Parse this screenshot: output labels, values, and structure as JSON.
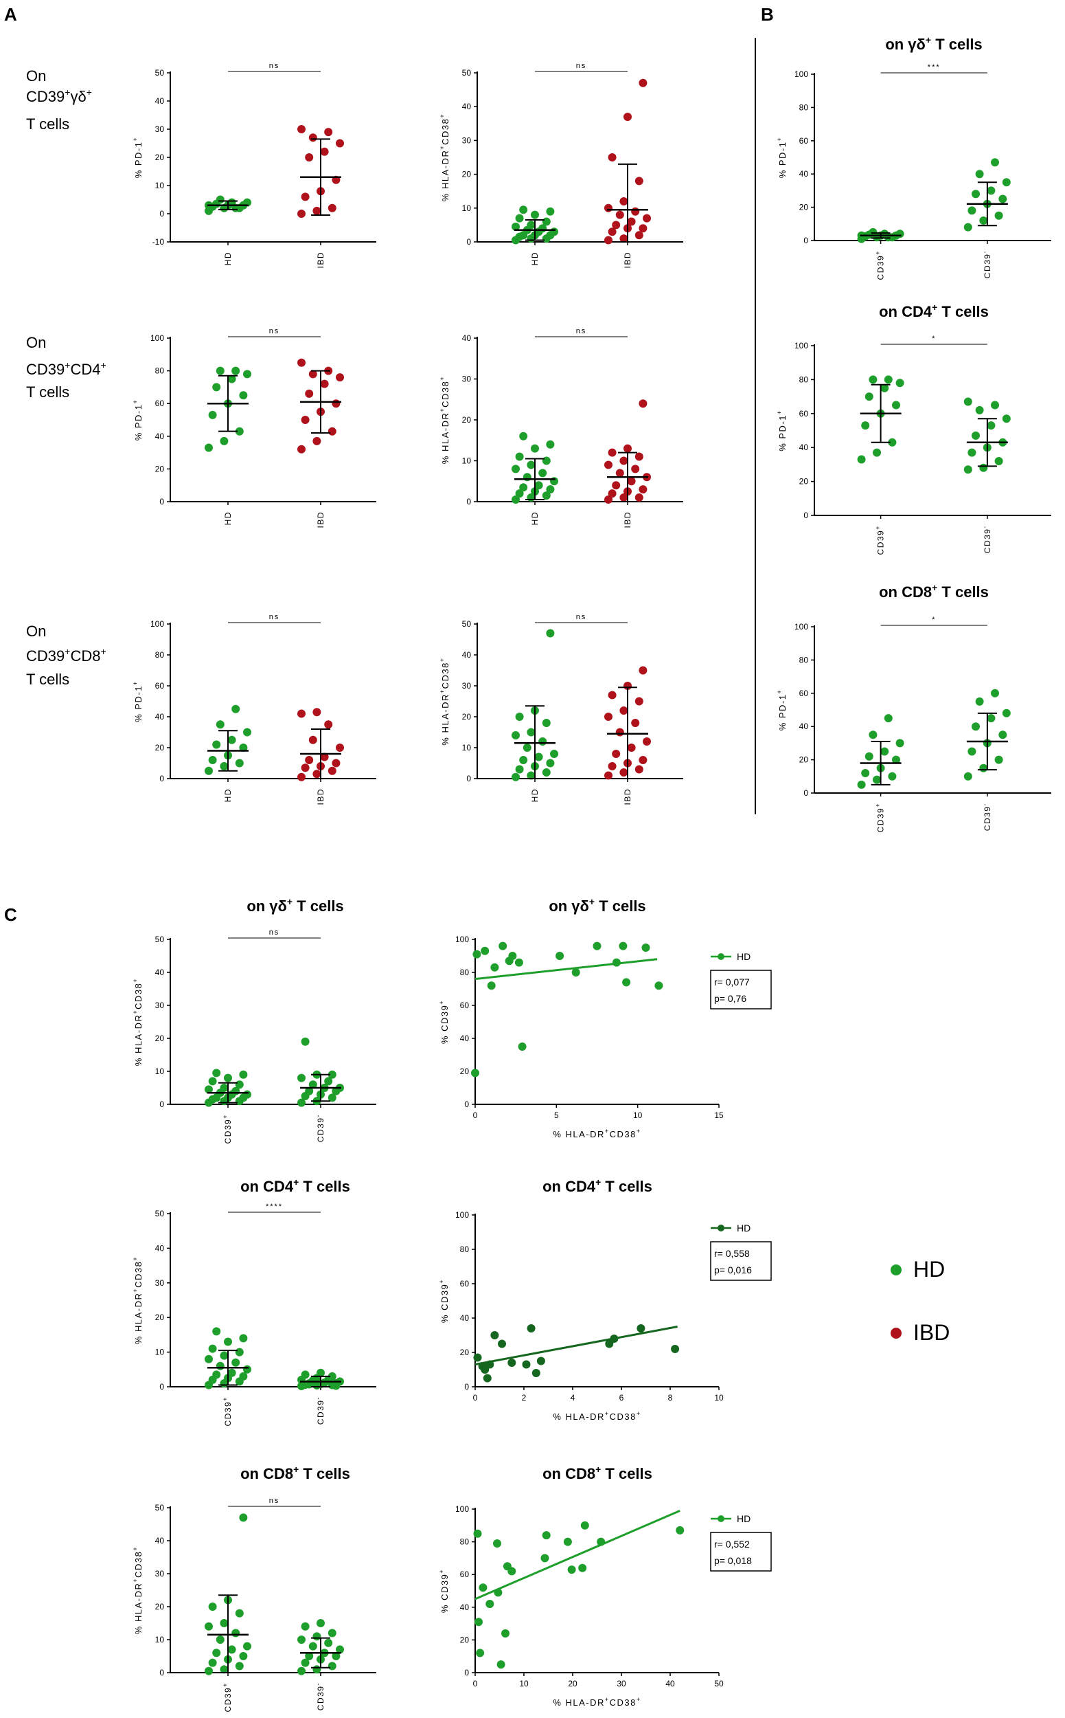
{
  "panel_labels": {
    "a": "A",
    "b": "B",
    "c": "C"
  },
  "row_labels": {
    "gd": {
      "l1": "On",
      "l2a": "CD39",
      "l2b": "+",
      "l2c": "γδ",
      "l2d": "+",
      "l3": "T cells"
    },
    "cd4": {
      "l1": "On",
      "l2a": "CD39",
      "l2b": "+",
      "l2c": "CD4",
      "l2d": "+",
      "l3": "T cells"
    },
    "cd8": {
      "l1": "On",
      "l2a": "CD39",
      "l2b": "+",
      "l2c": "CD8",
      "l2d": "+",
      "l3": "T cells"
    }
  },
  "titles": {
    "b_gd": {
      "a": "on γδ",
      "b": "+",
      "c": " T cells"
    },
    "b_cd4": {
      "a": "on CD4",
      "b": "+",
      "c": " T cells"
    },
    "b_cd8": {
      "a": "on CD8",
      "b": "+",
      "c": " T cells"
    }
  },
  "axis_text": {
    "pd1": "% PD-1",
    "hla": "% HLA-DR",
    "cd38": "CD38",
    "cd39": "% CD39",
    "sup": "+",
    "minus": "-",
    "cd39_tick": "CD39"
  },
  "legend": {
    "hd": "HD",
    "ibd": "IBD"
  },
  "colors": {
    "hd": "#1e9e2a",
    "ibd": "#b0121b",
    "hd_dark": "#15661e",
    "axis": "#000000"
  },
  "chart_data": [
    {
      "id": "A1",
      "type": "scatter",
      "title": "",
      "ylabel": "% PD-1+",
      "ylim": [
        -10,
        50
      ],
      "yticks": [
        -10,
        0,
        10,
        20,
        30,
        40,
        50
      ],
      "categories": [
        "HD",
        "IBD"
      ],
      "significance": "ns",
      "series": [
        {
          "name": "HD",
          "color": "hd",
          "mean": 3,
          "sd": 1.5,
          "values": [
            1,
            2,
            2,
            2.5,
            3,
            3,
            3.5,
            4,
            4,
            5,
            2,
            3
          ]
        },
        {
          "name": "IBD",
          "color": "ibd",
          "mean": 13,
          "sd": 13.5,
          "values": [
            0,
            1,
            2,
            6,
            8,
            12,
            20,
            22,
            25,
            27,
            29,
            30
          ]
        }
      ]
    },
    {
      "id": "A2",
      "type": "scatter",
      "ylabel": "% HLA-DR+CD38+",
      "ylim": [
        0,
        50
      ],
      "yticks": [
        0,
        10,
        20,
        30,
        40,
        50
      ],
      "categories": [
        "HD",
        "IBD"
      ],
      "significance": "ns",
      "series": [
        {
          "name": "HD",
          "color": "hd",
          "mean": 3.5,
          "sd": 3,
          "values": [
            0.5,
            1,
            1,
            1.5,
            2,
            2,
            2,
            3,
            3,
            3.5,
            4,
            4.5,
            5,
            6,
            7,
            8,
            9,
            9.5
          ]
        },
        {
          "name": "IBD",
          "color": "ibd",
          "mean": 9.5,
          "sd": 13.5,
          "values": [
            0.5,
            1,
            2,
            3,
            4,
            4,
            5,
            6,
            7,
            8,
            9,
            10,
            12,
            18,
            25,
            37,
            47
          ]
        }
      ]
    },
    {
      "id": "A3",
      "type": "scatter",
      "ylabel": "% PD-1+",
      "ylim": [
        0,
        100
      ],
      "yticks": [
        0,
        20,
        40,
        60,
        80,
        100
      ],
      "categories": [
        "HD",
        "IBD"
      ],
      "significance": "ns",
      "series": [
        {
          "name": "HD",
          "color": "hd",
          "mean": 60,
          "sd": 17,
          "values": [
            33,
            37,
            43,
            53,
            60,
            65,
            70,
            75,
            78,
            80,
            80
          ]
        },
        {
          "name": "IBD",
          "color": "ibd",
          "mean": 61,
          "sd": 19,
          "values": [
            32,
            37,
            43,
            50,
            55,
            60,
            66,
            72,
            76,
            78,
            80,
            85
          ]
        }
      ]
    },
    {
      "id": "A4",
      "type": "scatter",
      "ylabel": "% HLA-DR+CD38+",
      "ylim": [
        0,
        40
      ],
      "yticks": [
        0,
        10,
        20,
        30,
        40
      ],
      "categories": [
        "HD",
        "IBD"
      ],
      "significance": "ns",
      "series": [
        {
          "name": "HD",
          "color": "hd",
          "mean": 5.5,
          "sd": 5,
          "values": [
            0.5,
            1,
            1.5,
            2,
            2.5,
            3,
            3.5,
            4,
            5,
            6,
            7,
            8,
            9,
            10,
            11,
            13,
            14,
            16
          ]
        },
        {
          "name": "IBD",
          "color": "ibd",
          "mean": 6,
          "sd": 6,
          "values": [
            0.5,
            1,
            1,
            2,
            2.5,
            3,
            4,
            5,
            6,
            7,
            8,
            9,
            10,
            11,
            12,
            13,
            24
          ]
        }
      ]
    },
    {
      "id": "A5",
      "type": "scatter",
      "ylabel": "% PD-1+",
      "ylim": [
        0,
        100
      ],
      "yticks": [
        0,
        20,
        40,
        60,
        80,
        100
      ],
      "categories": [
        "HD",
        "IBD"
      ],
      "significance": "ns",
      "series": [
        {
          "name": "HD",
          "color": "hd",
          "mean": 18,
          "sd": 13,
          "values": [
            5,
            8,
            10,
            12,
            15,
            20,
            22,
            25,
            30,
            35,
            45
          ]
        },
        {
          "name": "IBD",
          "color": "ibd",
          "mean": 16,
          "sd": 16,
          "values": [
            1,
            3,
            5,
            7,
            8,
            10,
            12,
            14,
            20,
            25,
            35,
            42,
            43
          ]
        }
      ]
    },
    {
      "id": "A6",
      "type": "scatter",
      "ylabel": "% HLA-DR+CD38+",
      "ylim": [
        0,
        50
      ],
      "yticks": [
        0,
        10,
        20,
        30,
        40,
        50
      ],
      "categories": [
        "HD",
        "IBD"
      ],
      "significance": "ns",
      "series": [
        {
          "name": "HD",
          "color": "hd",
          "mean": 11.5,
          "sd": 12,
          "values": [
            0.5,
            1,
            2,
            3,
            4,
            5,
            6,
            7,
            8,
            10,
            12,
            14,
            15,
            18,
            20,
            22,
            47
          ]
        },
        {
          "name": "IBD",
          "color": "ibd",
          "mean": 14.5,
          "sd": 15,
          "values": [
            1,
            2,
            3,
            4,
            5,
            6,
            8,
            10,
            12,
            15,
            18,
            20,
            22,
            25,
            27,
            30,
            35
          ]
        }
      ]
    },
    {
      "id": "B1",
      "type": "scatter",
      "title": "on γδ+ T cells",
      "ylabel": "% PD-1+",
      "ylim": [
        0,
        100
      ],
      "yticks": [
        0,
        20,
        40,
        60,
        80,
        100
      ],
      "categories": [
        "CD39+",
        "CD39-"
      ],
      "significance": "***",
      "series": [
        {
          "name": "CD39+",
          "color": "hd",
          "mean": 3,
          "sd": 1.5,
          "values": [
            1,
            2,
            2,
            2.5,
            3,
            3,
            3.5,
            4,
            4,
            5,
            2,
            3
          ]
        },
        {
          "name": "CD39-",
          "color": "hd",
          "mean": 22,
          "sd": 13,
          "values": [
            8,
            12,
            15,
            18,
            22,
            25,
            28,
            30,
            35,
            40,
            47
          ]
        }
      ]
    },
    {
      "id": "B2",
      "type": "scatter",
      "title": "on CD4+ T cells",
      "ylabel": "% PD-1+",
      "ylim": [
        0,
        100
      ],
      "yticks": [
        0,
        20,
        40,
        60,
        80,
        100
      ],
      "categories": [
        "CD39+",
        "CD39-"
      ],
      "significance": "*",
      "series": [
        {
          "name": "CD39+",
          "color": "hd",
          "mean": 60,
          "sd": 17,
          "values": [
            33,
            37,
            43,
            53,
            60,
            65,
            70,
            75,
            78,
            80,
            80
          ]
        },
        {
          "name": "CD39-",
          "color": "hd",
          "mean": 43,
          "sd": 14,
          "values": [
            27,
            28,
            32,
            37,
            40,
            43,
            47,
            53,
            57,
            62,
            65,
            67
          ]
        }
      ]
    },
    {
      "id": "B3",
      "type": "scatter",
      "title": "on CD8+ T cells",
      "ylabel": "% PD-1+",
      "ylim": [
        0,
        100
      ],
      "yticks": [
        0,
        20,
        40,
        60,
        80,
        100
      ],
      "categories": [
        "CD39+",
        "CD39-"
      ],
      "significance": "*",
      "series": [
        {
          "name": "CD39+",
          "color": "hd",
          "mean": 18,
          "sd": 13,
          "values": [
            5,
            8,
            10,
            12,
            15,
            20,
            22,
            25,
            30,
            35,
            45
          ]
        },
        {
          "name": "CD39-",
          "color": "hd",
          "mean": 31,
          "sd": 17,
          "values": [
            10,
            15,
            20,
            25,
            30,
            35,
            40,
            45,
            48,
            55,
            60
          ]
        }
      ]
    },
    {
      "id": "C1",
      "type": "scatter",
      "title": "on γδ+ T cells",
      "ylabel": "% HLA-DR+CD38+",
      "ylim": [
        0,
        50
      ],
      "yticks": [
        0,
        10,
        20,
        30,
        40,
        50
      ],
      "categories": [
        "CD39+",
        "CD39-"
      ],
      "significance": "ns",
      "series": [
        {
          "name": "CD39+",
          "color": "hd",
          "mean": 3.5,
          "sd": 3,
          "values": [
            0.5,
            1,
            1,
            1.5,
            2,
            2,
            2,
            3,
            3,
            3.5,
            4,
            4.5,
            5,
            6,
            7,
            8,
            9,
            9.5
          ]
        },
        {
          "name": "CD39-",
          "color": "hd",
          "mean": 5,
          "sd": 4,
          "values": [
            0.5,
            1,
            2,
            2.5,
            3,
            4,
            4,
            5,
            5,
            6,
            7,
            8,
            9,
            9,
            19
          ]
        }
      ]
    },
    {
      "id": "C3",
      "type": "scatter",
      "title": "on CD4+ T cells",
      "ylabel": "% HLA-DR+CD38+",
      "ylim": [
        0,
        50
      ],
      "yticks": [
        0,
        10,
        20,
        30,
        40,
        50
      ],
      "categories": [
        "CD39+",
        "CD39-"
      ],
      "significance": "****",
      "series": [
        {
          "name": "CD39+",
          "color": "hd",
          "mean": 5.5,
          "sd": 5,
          "values": [
            0.5,
            1,
            1.5,
            2,
            2.5,
            3,
            3.5,
            4,
            5,
            6,
            7,
            8,
            9,
            10,
            11,
            13,
            14,
            16
          ]
        },
        {
          "name": "CD39-",
          "color": "hd",
          "mean": 1.5,
          "sd": 1.5,
          "values": [
            0.2,
            0.4,
            0.5,
            0.6,
            0.8,
            1,
            1,
            1.2,
            1.5,
            1.8,
            2,
            2,
            2.5,
            3,
            3.5,
            4,
            0.3,
            0.7
          ]
        }
      ]
    },
    {
      "id": "C5",
      "type": "scatter",
      "title": "on CD8+ T cells",
      "ylabel": "% HLA-DR+CD38+",
      "ylim": [
        0,
        50
      ],
      "yticks": [
        0,
        10,
        20,
        30,
        40,
        50
      ],
      "categories": [
        "CD39+",
        "CD39-"
      ],
      "significance": "ns",
      "series": [
        {
          "name": "CD39+",
          "color": "hd",
          "mean": 11.5,
          "sd": 12,
          "values": [
            0.5,
            1,
            2,
            3,
            4,
            5,
            6,
            7,
            8,
            10,
            12,
            14,
            15,
            18,
            20,
            22,
            47
          ]
        },
        {
          "name": "CD39-",
          "color": "hd",
          "mean": 6,
          "sd": 4.5,
          "values": [
            0.5,
            1,
            2,
            3,
            4,
            5,
            5,
            6,
            7,
            8,
            9,
            10,
            11,
            12,
            14,
            15
          ]
        }
      ]
    },
    {
      "id": "C2",
      "type": "scatter",
      "title": "on γδ+ T cells",
      "xlabel": "% HLA-DR+CD38+",
      "ylabel": "% CD39+",
      "xlim": [
        0,
        15
      ],
      "ylim": [
        0,
        100
      ],
      "xticks": [
        0,
        5,
        10,
        15
      ],
      "yticks": [
        0,
        20,
        40,
        60,
        80,
        100
      ],
      "legend": "HD",
      "stats": {
        "r": "r= 0,077",
        "p": "p= 0,76"
      },
      "fit": [
        [
          0,
          76
        ],
        [
          11.2,
          88
        ]
      ],
      "points": [
        [
          0,
          19
        ],
        [
          0.1,
          91
        ],
        [
          0.6,
          93
        ],
        [
          1.2,
          83
        ],
        [
          1.7,
          96
        ],
        [
          2.1,
          87
        ],
        [
          2.3,
          90
        ],
        [
          2.7,
          86
        ],
        [
          1,
          72
        ],
        [
          2.9,
          35
        ],
        [
          5.2,
          90
        ],
        [
          6.2,
          80
        ],
        [
          7.5,
          96
        ],
        [
          8.7,
          86
        ],
        [
          9.1,
          96
        ],
        [
          9.3,
          74
        ],
        [
          10.5,
          95
        ],
        [
          11.3,
          72
        ]
      ]
    },
    {
      "id": "C4",
      "type": "scatter",
      "title": "on CD4+ T cells",
      "xlabel": "% HLA-DR+CD38+",
      "ylabel": "% CD39+",
      "xlim": [
        0,
        10
      ],
      "ylim": [
        0,
        100
      ],
      "xticks": [
        0,
        2,
        4,
        6,
        8,
        10
      ],
      "yticks": [
        0,
        20,
        40,
        60,
        80,
        100
      ],
      "legend": "HD",
      "stats": {
        "r": "r= 0,558",
        "p": "p= 0,016"
      },
      "fit": [
        [
          0,
          13
        ],
        [
          8.3,
          35
        ]
      ],
      "points": [
        [
          0.1,
          17
        ],
        [
          0.3,
          12
        ],
        [
          0.4,
          10
        ],
        [
          0.5,
          5
        ],
        [
          0.6,
          13
        ],
        [
          0.8,
          30
        ],
        [
          1.1,
          25
        ],
        [
          1.5,
          14
        ],
        [
          2.1,
          13
        ],
        [
          2.3,
          34
        ],
        [
          2.5,
          8
        ],
        [
          2.7,
          15
        ],
        [
          5.5,
          25
        ],
        [
          5.7,
          28
        ],
        [
          6.8,
          34
        ],
        [
          8.2,
          22
        ]
      ]
    },
    {
      "id": "C6",
      "type": "scatter",
      "title": "on CD8+ T cells",
      "xlabel": "% HLA-DR+CD38+",
      "ylabel": "% CD39+",
      "xlim": [
        0,
        50
      ],
      "ylim": [
        0,
        100
      ],
      "xticks": [
        0,
        10,
        20,
        30,
        40,
        50
      ],
      "yticks": [
        0,
        20,
        40,
        60,
        80,
        100
      ],
      "legend": "HD",
      "stats": {
        "r": "r= 0,552",
        "p": "p= 0,018"
      },
      "fit": [
        [
          0,
          45
        ],
        [
          42,
          99
        ]
      ],
      "points": [
        [
          0.5,
          85
        ],
        [
          0.7,
          31
        ],
        [
          1,
          12
        ],
        [
          1.6,
          52
        ],
        [
          3,
          42
        ],
        [
          4.5,
          79
        ],
        [
          4.7,
          49
        ],
        [
          5.3,
          5
        ],
        [
          6.2,
          24
        ],
        [
          6.6,
          65
        ],
        [
          7.5,
          62
        ],
        [
          14.3,
          70
        ],
        [
          14.6,
          84
        ],
        [
          19,
          80
        ],
        [
          19.8,
          63
        ],
        [
          22,
          64
        ],
        [
          22.5,
          90
        ],
        [
          25.8,
          80
        ],
        [
          42,
          87
        ]
      ]
    }
  ]
}
